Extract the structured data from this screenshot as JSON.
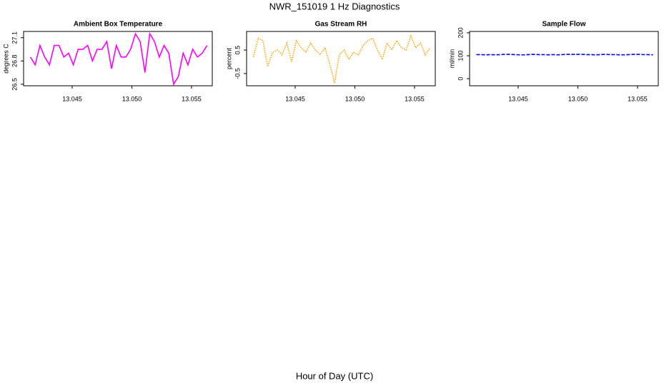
{
  "title": "NWR_151019  1 Hz Diagnostics",
  "xlabel": "Hour of Day (UTC)",
  "chart_data": [
    {
      "type": "line",
      "title": "Ambient Box Temperature",
      "ylabel": "degrees C",
      "x": [
        13.0415,
        13.0419,
        13.0423,
        13.0427,
        13.0431,
        13.0435,
        13.0439,
        13.0443,
        13.0447,
        13.0451,
        13.0455,
        13.0459,
        13.0463,
        13.0467,
        13.0471,
        13.0475,
        13.0479,
        13.0483,
        13.0487,
        13.0491,
        13.0495,
        13.0499,
        13.0503,
        13.0507,
        13.0511,
        13.0515,
        13.0519,
        13.0523,
        13.0527,
        13.0531,
        13.0535,
        13.0539,
        13.0543,
        13.0547,
        13.0551,
        13.0555,
        13.0559,
        13.0563
      ],
      "values": [
        26.85,
        26.75,
        27.0,
        26.85,
        26.75,
        27.0,
        27.0,
        26.85,
        26.9,
        26.75,
        26.95,
        26.95,
        27.0,
        26.8,
        26.95,
        26.95,
        27.05,
        26.7,
        27.0,
        26.85,
        26.85,
        26.95,
        27.15,
        27.05,
        26.65,
        27.15,
        27.05,
        26.85,
        27.0,
        26.9,
        26.5,
        26.6,
        26.9,
        26.75,
        26.95,
        26.85,
        26.9,
        27.0
      ],
      "color": "#ff00ff",
      "linestyle": "solid",
      "xlim": [
        13.04093,
        13.05674
      ],
      "xticks": [
        13.045,
        {
          "value": 13.05,
          "label": "13.050"
        },
        13.055
      ],
      "ylim": [
        26.48,
        27.18
      ],
      "yticks": [
        26.5,
        26.8,
        27.1
      ]
    },
    {
      "type": "line",
      "title": "Gas Stream RH",
      "ylabel": "percent",
      "x": [
        13.0415,
        13.0419,
        13.0423,
        13.0427,
        13.0431,
        13.0435,
        13.0439,
        13.0443,
        13.0447,
        13.0451,
        13.0455,
        13.0459,
        13.0463,
        13.0467,
        13.0471,
        13.0475,
        13.0479,
        13.0483,
        13.0487,
        13.0491,
        13.0495,
        13.0499,
        13.0503,
        13.0507,
        13.0511,
        13.0515,
        13.0519,
        13.0523,
        13.0527,
        13.0531,
        13.0535,
        13.0539,
        13.0543,
        13.0547,
        13.0551,
        13.0555,
        13.0559,
        13.0563
      ],
      "values": [
        0.2,
        1.0,
        0.9,
        -0.2,
        0.4,
        0.5,
        0.3,
        0.8,
        0.0,
        0.9,
        0.6,
        0.4,
        0.8,
        0.5,
        0.3,
        0.6,
        -0.1,
        -0.9,
        0.3,
        0.5,
        0.1,
        0.4,
        0.3,
        0.7,
        0.9,
        1.0,
        0.5,
        0.1,
        0.8,
        0.5,
        0.9,
        0.6,
        0.5,
        1.1,
        0.6,
        0.8,
        0.3,
        0.6
      ],
      "color": "#ffa500",
      "linestyle": "dotted",
      "xlim": [
        13.04093,
        13.05674
      ],
      "xticks": [
        13.045,
        {
          "value": 13.05,
          "label": "13.050"
        },
        13.055
      ],
      "ylim": [
        -1.02,
        1.29
      ],
      "yticks": [
        -0.5,
        0.5
      ]
    },
    {
      "type": "line",
      "title": "Sample Flow",
      "ylabel": "ml/min",
      "x": [
        13.0415,
        13.0419,
        13.0423,
        13.0427,
        13.0431,
        13.0435,
        13.0439,
        13.0443,
        13.0447,
        13.0451,
        13.0455,
        13.0459,
        13.0463,
        13.0467,
        13.0471,
        13.0475,
        13.0479,
        13.0483,
        13.0487,
        13.0491,
        13.0495,
        13.0499,
        13.0503,
        13.0507,
        13.0511,
        13.0515,
        13.0519,
        13.0523,
        13.0527,
        13.0531,
        13.0535,
        13.0539,
        13.0543,
        13.0547,
        13.0551,
        13.0555,
        13.0559,
        13.0563
      ],
      "values": [
        105,
        105,
        104,
        105,
        104,
        105,
        106,
        106,
        105,
        104,
        104,
        105,
        106,
        105,
        105,
        104,
        105,
        104,
        105,
        106,
        106,
        106,
        106,
        105,
        105,
        104,
        105,
        106,
        105,
        105,
        104,
        104,
        105,
        106,
        106,
        105,
        105,
        104
      ],
      "color": "#0000ff",
      "linestyle": "dashed",
      "xlim": [
        13.04093,
        13.05674
      ],
      "xticks": [
        13.045,
        {
          "value": 13.05,
          "label": "13.050"
        },
        13.055
      ],
      "ylim": [
        -31,
        206
      ],
      "yticks": [
        0,
        100,
        200
      ]
    }
  ]
}
